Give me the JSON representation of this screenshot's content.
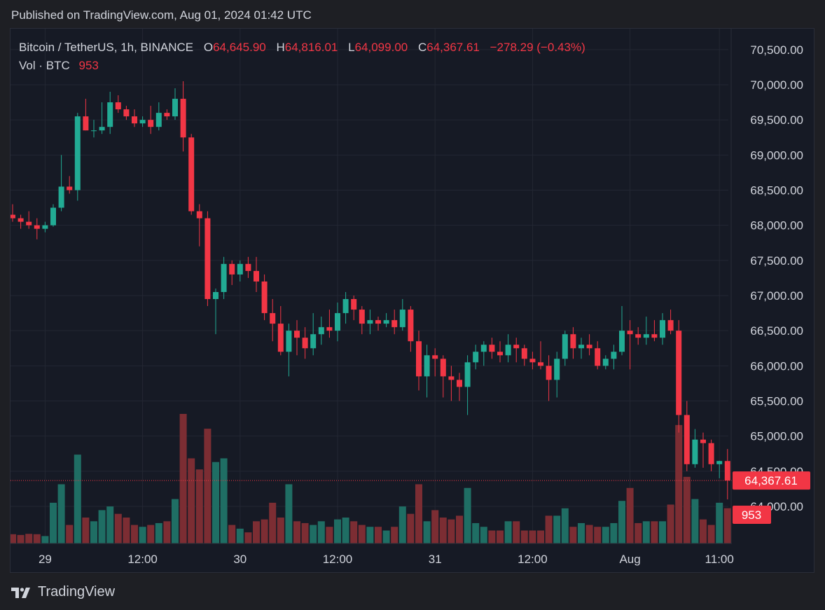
{
  "published": "Published on TradingView.com, Aug 01, 2024 01:42 UTC",
  "footer": {
    "brand": "TradingView",
    "logo_icon": "tradingview-logo-icon"
  },
  "legend": {
    "symbol": "Bitcoin / TetherUS, 1h, BINANCE",
    "open_label": "O",
    "open": "64,645.90",
    "high_label": "H",
    "high": "64,816.01",
    "low_label": "L",
    "low": "64,099.00",
    "close_label": "C",
    "close": "64,367.61",
    "change": "−278.29 (−0.43%)",
    "vol_label": "Vol · BTC",
    "vol": "953"
  },
  "colors": {
    "up": "#22ab94",
    "down": "#f23645",
    "up_vol": "#1f6e64",
    "down_vol": "#7c2d33",
    "background": "#161a25",
    "grid": "#232733",
    "text": "#d1d4dc"
  },
  "chart_data": {
    "type": "candlestick",
    "ylim": [
      63500,
      70700
    ],
    "yticks": [
      "70,500.00",
      "70,000.00",
      "69,500.00",
      "69,000.00",
      "68,500.00",
      "68,000.00",
      "67,500.00",
      "67,000.00",
      "66,500.00",
      "66,000.00",
      "65,500.00",
      "65,000.00",
      "64,500.00",
      "64,000.00"
    ],
    "ytick_values": [
      70500,
      70000,
      69500,
      69000,
      68500,
      68000,
      67500,
      67000,
      66500,
      66000,
      65500,
      65000,
      64500,
      64000
    ],
    "xticks": [
      {
        "label": "29",
        "index": 4
      },
      {
        "label": "12:00",
        "index": 16
      },
      {
        "label": "30",
        "index": 28
      },
      {
        "label": "12:00",
        "index": 40
      },
      {
        "label": "31",
        "index": 52
      },
      {
        "label": "12:00",
        "index": 64
      },
      {
        "label": "Aug",
        "index": 76
      },
      {
        "label": "11:00",
        "index": 87
      }
    ],
    "last_price_label": "64,367.61",
    "last_price": 64367.61,
    "last_volume_label": "953",
    "candles": [
      [
        68150,
        68300,
        68050,
        68100,
        250
      ],
      [
        68100,
        68150,
        67950,
        68050,
        230
      ],
      [
        68050,
        68200,
        67950,
        68000,
        260
      ],
      [
        68000,
        68100,
        67800,
        67950,
        250
      ],
      [
        67950,
        68050,
        67900,
        68000,
        200
      ],
      [
        68000,
        68300,
        67980,
        68250,
        1100
      ],
      [
        68250,
        69000,
        68200,
        68550,
        1600
      ],
      [
        68550,
        68700,
        68450,
        68500,
        500
      ],
      [
        68500,
        69600,
        68350,
        69550,
        2400
      ],
      [
        69550,
        69800,
        69350,
        69350,
        700
      ],
      [
        69350,
        69500,
        69250,
        69350,
        600
      ],
      [
        69350,
        69750,
        69300,
        69400,
        900
      ],
      [
        69400,
        69900,
        69300,
        69750,
        1000
      ],
      [
        69750,
        69850,
        69600,
        69650,
        800
      ],
      [
        69650,
        69700,
        69500,
        69550,
        700
      ],
      [
        69550,
        69650,
        69400,
        69450,
        500
      ],
      [
        69450,
        69550,
        69400,
        69500,
        450
      ],
      [
        69500,
        69700,
        69300,
        69400,
        500
      ],
      [
        69400,
        69750,
        69350,
        69600,
        550
      ],
      [
        69600,
        69650,
        69500,
        69550,
        600
      ],
      [
        69550,
        69950,
        69500,
        69800,
        1200
      ],
      [
        69800,
        70050,
        69050,
        69250,
        3500
      ],
      [
        69250,
        69300,
        68150,
        68200,
        2300
      ],
      [
        68200,
        68300,
        67700,
        68100,
        2000
      ],
      [
        68100,
        68200,
        66850,
        66950,
        3100
      ],
      [
        66950,
        67100,
        66450,
        67050,
        2200
      ],
      [
        67050,
        67550,
        66950,
        67450,
        2300
      ],
      [
        67450,
        67500,
        67150,
        67300,
        500
      ],
      [
        67300,
        67500,
        67200,
        67450,
        400
      ],
      [
        67450,
        67550,
        67250,
        67350,
        300
      ],
      [
        67350,
        67550,
        67050,
        67200,
        600
      ],
      [
        67200,
        67300,
        66650,
        66750,
        650
      ],
      [
        66750,
        66950,
        66350,
        66600,
        1100
      ],
      [
        66600,
        66850,
        66150,
        66200,
        700
      ],
      [
        66200,
        66600,
        65850,
        66500,
        1600
      ],
      [
        66500,
        66650,
        66150,
        66400,
        600
      ],
      [
        66400,
        66550,
        66100,
        66250,
        550
      ],
      [
        66250,
        66750,
        66150,
        66450,
        500
      ],
      [
        66450,
        66700,
        66300,
        66550,
        600
      ],
      [
        66550,
        66800,
        66400,
        66500,
        450
      ],
      [
        66500,
        66900,
        66350,
        66750,
        650
      ],
      [
        66750,
        67050,
        66600,
        66950,
        700
      ],
      [
        66950,
        67000,
        66650,
        66800,
        600
      ],
      [
        66800,
        66850,
        66450,
        66600,
        500
      ],
      [
        66600,
        66800,
        66450,
        66650,
        450
      ],
      [
        66650,
        66700,
        66500,
        66600,
        450
      ],
      [
        66600,
        66750,
        66550,
        66650,
        350
      ],
      [
        66650,
        66800,
        66450,
        66550,
        450
      ],
      [
        66550,
        66950,
        66500,
        66800,
        1000
      ],
      [
        66800,
        66850,
        66200,
        66350,
        800
      ],
      [
        66350,
        66500,
        65650,
        65850,
        1600
      ],
      [
        65850,
        66300,
        65550,
        66150,
        600
      ],
      [
        66150,
        66250,
        65850,
        66100,
        900
      ],
      [
        66100,
        66150,
        65550,
        65850,
        700
      ],
      [
        65850,
        66000,
        65500,
        65800,
        650
      ],
      [
        65800,
        65900,
        65500,
        65700,
        750
      ],
      [
        65700,
        66150,
        65300,
        66050,
        1500
      ],
      [
        66050,
        66300,
        65950,
        66200,
        550
      ],
      [
        66200,
        66350,
        66000,
        66300,
        450
      ],
      [
        66300,
        66400,
        66100,
        66200,
        350
      ],
      [
        66200,
        66350,
        66050,
        66150,
        350
      ],
      [
        66150,
        66450,
        66050,
        66300,
        600
      ],
      [
        66300,
        66400,
        66050,
        66250,
        600
      ],
      [
        66250,
        66300,
        66000,
        66100,
        350
      ],
      [
        66100,
        66200,
        65950,
        66050,
        350
      ],
      [
        66050,
        66350,
        65950,
        66000,
        350
      ],
      [
        66000,
        66150,
        65500,
        65800,
        750
      ],
      [
        65800,
        66200,
        65550,
        66100,
        750
      ],
      [
        66100,
        66500,
        66000,
        66450,
        950
      ],
      [
        66450,
        66550,
        66100,
        66250,
        450
      ],
      [
        66250,
        66400,
        66100,
        66300,
        550
      ],
      [
        66300,
        66450,
        66150,
        66250,
        500
      ],
      [
        66250,
        66350,
        65950,
        66000,
        450
      ],
      [
        66000,
        66150,
        65950,
        66100,
        450
      ],
      [
        66100,
        66300,
        65950,
        66200,
        550
      ],
      [
        66200,
        66850,
        66150,
        66500,
        1150
      ],
      [
        66500,
        66650,
        65950,
        66450,
        1500
      ],
      [
        66450,
        66550,
        66300,
        66400,
        550
      ],
      [
        66400,
        66700,
        66300,
        66450,
        600
      ],
      [
        66450,
        66650,
        66350,
        66400,
        600
      ],
      [
        66400,
        66750,
        66300,
        66650,
        600
      ],
      [
        66650,
        66800,
        66450,
        66500,
        1050
      ],
      [
        66500,
        66650,
        65050,
        65300,
        3200
      ],
      [
        65300,
        65500,
        64500,
        64600,
        1800
      ],
      [
        64600,
        65100,
        64550,
        64950,
        1200
      ],
      [
        64950,
        65050,
        64550,
        64900,
        650
      ],
      [
        64900,
        64950,
        64500,
        64600,
        500
      ],
      [
        64600,
        64650,
        64400,
        64645,
        1100
      ],
      [
        64645,
        64816,
        64099,
        64367,
        953
      ]
    ]
  }
}
